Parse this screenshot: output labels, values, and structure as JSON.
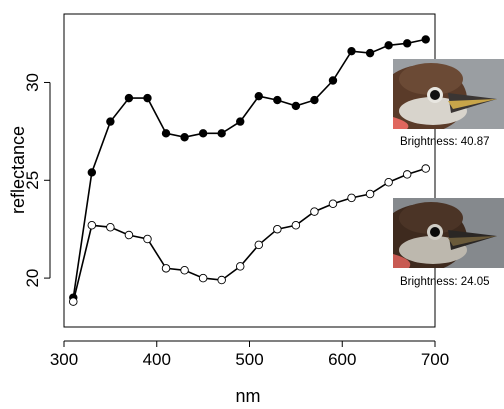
{
  "chart_data": {
    "type": "line",
    "xlabel": "nm",
    "ylabel": "reflectance",
    "xlim": [
      300,
      700
    ],
    "ylim": [
      17.5,
      33.5
    ],
    "x_ticks": [
      300,
      400,
      500,
      600,
      700
    ],
    "y_ticks": [
      20,
      25,
      30
    ],
    "grid": false,
    "series": [
      {
        "marker": "filled-circle",
        "color": "#000000",
        "x": [
          310,
          330,
          350,
          370,
          390,
          410,
          430,
          450,
          470,
          490,
          510,
          530,
          550,
          570,
          590,
          610,
          630,
          650,
          670,
          690
        ],
        "values": [
          19.0,
          25.4,
          28.0,
          29.2,
          29.2,
          27.4,
          27.2,
          27.4,
          27.4,
          28.0,
          29.3,
          29.1,
          28.8,
          29.1,
          30.1,
          31.6,
          31.5,
          31.9,
          32.0,
          32.2
        ]
      },
      {
        "marker": "open-circle",
        "color": "#000000",
        "x": [
          310,
          330,
          350,
          370,
          390,
          410,
          430,
          450,
          470,
          490,
          510,
          530,
          550,
          570,
          590,
          610,
          630,
          650,
          670,
          690
        ],
        "values": [
          18.8,
          22.7,
          22.6,
          22.2,
          22.0,
          20.5,
          20.4,
          20.0,
          19.9,
          20.6,
          21.7,
          22.5,
          22.7,
          23.4,
          23.8,
          24.1,
          24.3,
          24.9,
          25.3,
          25.6
        ]
      }
    ],
    "annotations": [
      {
        "text": "Brightness: 40.87",
        "image": "bird-head-photo-bright"
      },
      {
        "text": "Brightness: 24.05",
        "image": "bird-head-photo-dark"
      }
    ]
  }
}
